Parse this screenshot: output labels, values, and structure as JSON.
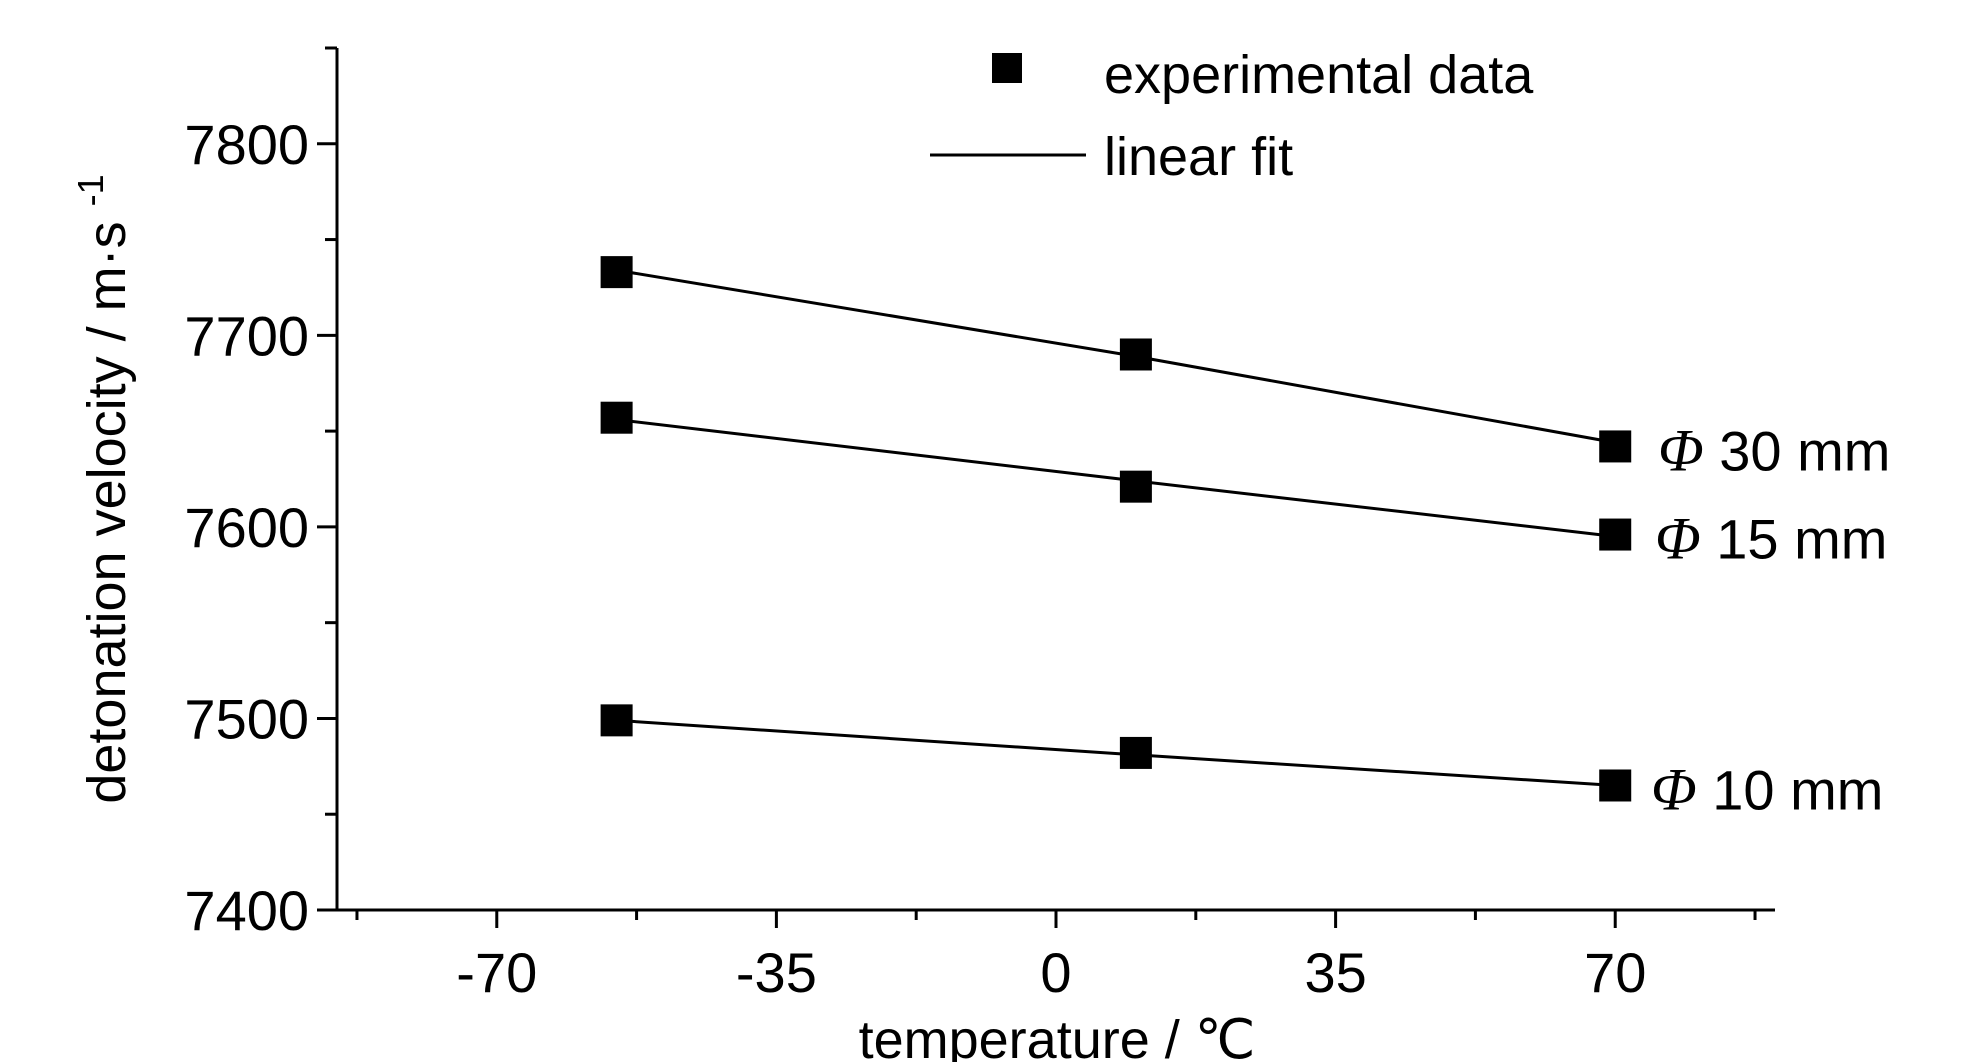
{
  "chart_data": {
    "type": "line",
    "title": "",
    "xlabel": "temperature / ℃",
    "ylabel_main": "detonation velocity / m·s",
    "ylabel_sup": "-1",
    "xlim": [
      -90,
      90
    ],
    "ylim": [
      7400,
      7850
    ],
    "x_ticks": [
      -70,
      -35,
      0,
      35,
      70
    ],
    "x_tick_labels": [
      "-70",
      "-35",
      "0",
      "35",
      "70"
    ],
    "y_ticks": [
      7400,
      7500,
      7600,
      7700,
      7800
    ],
    "y_tick_labels": [
      "7400",
      "7500",
      "7600",
      "7700",
      "7800"
    ],
    "x_minor_step": 17.5,
    "y_minor_step": 50,
    "x": [
      -55,
      10,
      70
    ],
    "legend": {
      "position": "top-center",
      "entries": [
        {
          "label": "experimental data",
          "marker": "square"
        },
        {
          "label": "linear fit",
          "marker": "line"
        }
      ]
    },
    "series": [
      {
        "phi": "Φ",
        "size": "30 mm",
        "values": [
          7733,
          7690,
          7642
        ],
        "fit": [
          7734,
          7689,
          7644
        ]
      },
      {
        "phi": "Φ",
        "size": "15 mm",
        "values": [
          7657,
          7621,
          7596
        ],
        "fit": [
          7656,
          7624,
          7595
        ]
      },
      {
        "phi": "Φ",
        "size": "10 mm",
        "values": [
          7499,
          7482,
          7465
        ],
        "fit": [
          7499,
          7481,
          7465
        ]
      }
    ],
    "colors": {
      "marker": "#000000",
      "line": "#000000",
      "axis": "#000000"
    }
  }
}
